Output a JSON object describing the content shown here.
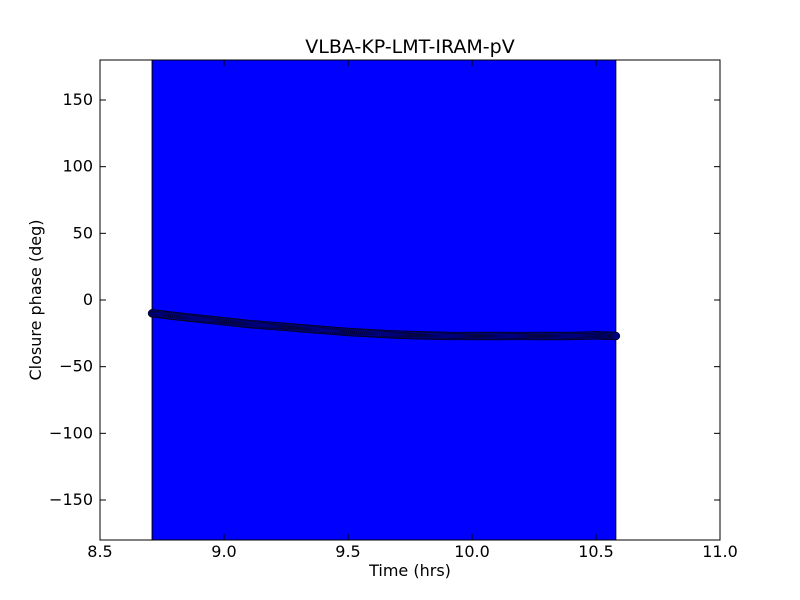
{
  "chart_data": {
    "type": "scatter",
    "title": "VLBA-KP-LMT-IRAM-pV",
    "xlabel": "Time (hrs)",
    "ylabel": "Closure phase (deg)",
    "xlim": [
      8.5,
      11.0
    ],
    "ylim": [
      -180,
      180
    ],
    "xticks": [
      8.5,
      9.0,
      9.5,
      10.0,
      10.5,
      11.0
    ],
    "xtick_labels": [
      "8.5",
      "9.0",
      "9.5",
      "10.0",
      "10.5",
      "11.0"
    ],
    "yticks": [
      150,
      100,
      50,
      0,
      -50,
      -100,
      -150
    ],
    "ytick_labels": [
      "150",
      "100",
      "50",
      "0",
      "−50",
      "−100",
      "−150"
    ],
    "grid": false,
    "legend": "none",
    "colors": {
      "errorbar": "#0000ff",
      "marker": "#000080"
    },
    "error_band": {
      "x_start": 8.71,
      "x_end": 10.58,
      "y_low": -180,
      "y_high": 180
    },
    "series": [
      {
        "x": [
          8.71,
          8.8,
          8.9,
          9.0,
          9.1,
          9.2,
          9.3,
          9.4,
          9.5,
          9.6,
          9.7,
          9.8,
          9.9,
          10.0,
          10.1,
          10.2,
          10.3,
          10.4,
          10.5,
          10.58
        ],
        "y": [
          -10,
          -12,
          -14,
          -16,
          -18,
          -19.5,
          -21,
          -22.5,
          -24,
          -25,
          -26,
          -26.5,
          -27,
          -27,
          -27,
          -27,
          -27,
          -27,
          -26.5,
          -27
        ]
      }
    ]
  }
}
